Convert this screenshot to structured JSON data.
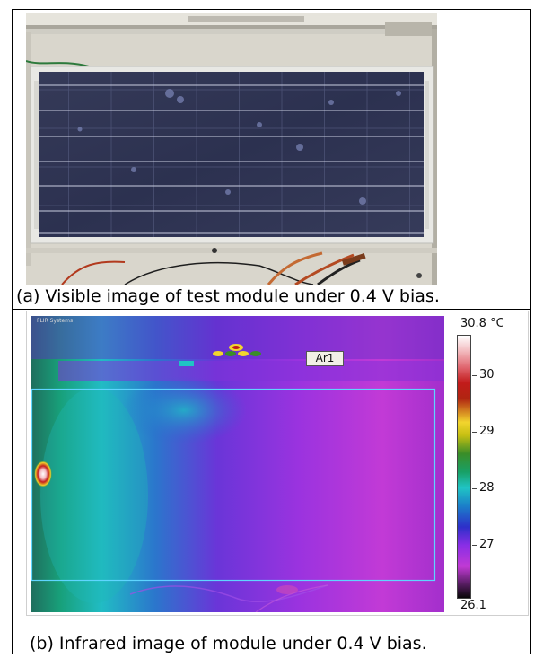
{
  "panel_a": {
    "caption": "(a) Visible image of test module under 0.4 V bias."
  },
  "panel_b": {
    "caption": "(b) Infrared image of module under 0.4 V bias.",
    "camera_label": "FLIR Systems",
    "roi_label": "Ar1",
    "scale": {
      "max_label": "30.8 °C",
      "min_label": "26.1",
      "ticks": [
        "30",
        "29",
        "28",
        "27"
      ]
    }
  },
  "colors": {
    "module_blue": "#2d3350",
    "thermal_hot": "#ffffff",
    "thermal_cold": "#080608",
    "roi_outline": "#5fd5ff"
  }
}
